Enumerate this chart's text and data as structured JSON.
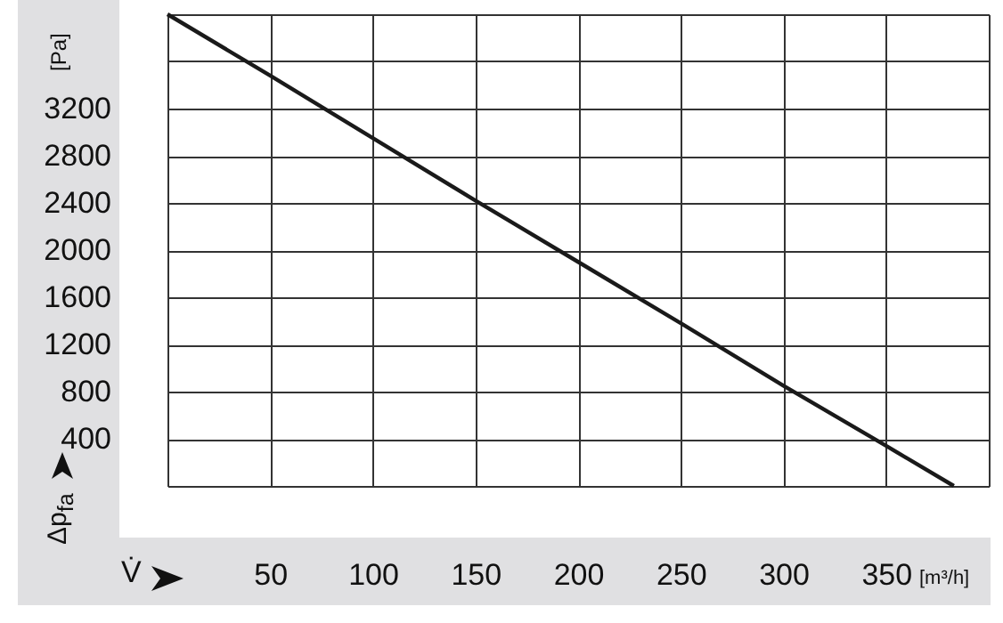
{
  "chart_data": {
    "type": "line",
    "xlabel": "V̇",
    "ylabel": "Δp$_{fa}$",
    "annotations": [
      "[Pa]",
      "[m³/h]"
    ],
    "x": [
      0,
      50,
      100,
      150,
      200,
      250,
      300,
      350,
      383
    ],
    "series": [
      {
        "color": "#1a1a1a",
        "values": [
          4000,
          3480,
          2950,
          2420,
          1900,
          1380,
          850,
          340,
          0
        ]
      }
    ],
    "xlim": [
      0,
      400
    ],
    "xticks": [
      {
        "value": 0,
        "label": null
      },
      50,
      100,
      150,
      200,
      250,
      300,
      350,
      {
        "value": 400,
        "label": null
      }
    ],
    "ylim": [
      0,
      4000
    ],
    "yticks": [
      {
        "value": 0,
        "label": null
      },
      400,
      800,
      1200,
      1600,
      2000,
      2400,
      2800,
      3200,
      {
        "value": 3600,
        "label": null
      },
      {
        "value": 4000,
        "label": null
      }
    ],
    "grid": true,
    "marker": "none",
    "line_style": "solid"
  }
}
